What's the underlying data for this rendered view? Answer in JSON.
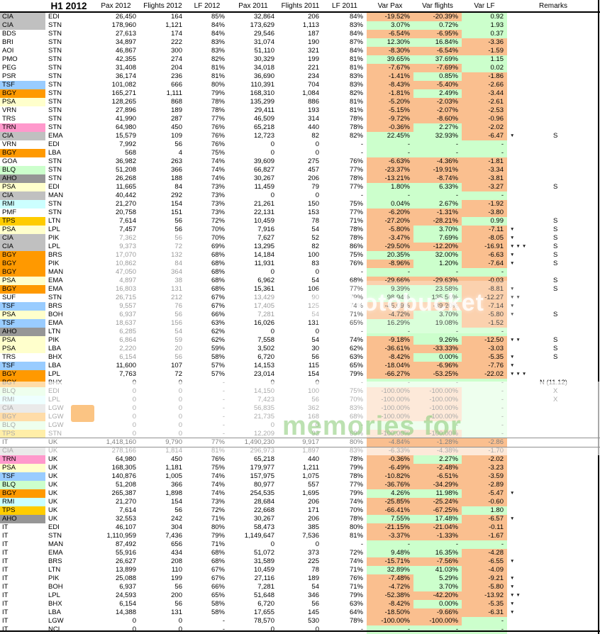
{
  "header": {
    "h1": "H1 2012",
    "pax12": "Pax 2012",
    "fl12": "Flights 2012",
    "lf12": "LF 2012",
    "pax11": "Pax 2011",
    "fl11": "Flights 2011",
    "lf11": "LF 2011",
    "vpax": "Var Pax",
    "vfl": "Var flights",
    "vlf": "Var LF",
    "rem": "Remarks"
  },
  "colors": {
    "positive_bg": "#ccffcc",
    "negative_bg": "#fabf8f",
    "total_text": "#808080",
    "dim_text": "#9a9a9a",
    "codes": {
      "CIA": "#c0c0c0",
      "AHO": "#969696",
      "TSF": "#99ccff",
      "BGY": "#ff9900",
      "PSA": "#ffffcc",
      "TRN": "#ff99cc",
      "BLQ": "#ccffcc",
      "RMI": "#ccffff",
      "TPS": "#ffcc00"
    }
  },
  "watermark": {
    "center_text": "photobucket",
    "band_text": "memories for"
  },
  "down_arrow_glyph": "▼",
  "table": {
    "rows": [
      [
        "CIA",
        "EDI",
        "26,450",
        "164",
        "85%",
        "32,864",
        "206",
        "84%",
        "-19.52%",
        "-20.39%",
        "0.92",
        0,
        "",
        ""
      ],
      [
        "CIA",
        "STN",
        "178,960",
        "1,121",
        "84%",
        "173,629",
        "1,113",
        "83%",
        "3.07%",
        "0.72%",
        "1.93",
        0,
        "",
        ""
      ],
      [
        "BDS",
        "STN",
        "27,613",
        "174",
        "84%",
        "29,546",
        "187",
        "84%",
        "-6.54%",
        "-6.95%",
        "0.37",
        0,
        "",
        ""
      ],
      [
        "BRI",
        "STN",
        "34,897",
        "222",
        "83%",
        "31,074",
        "190",
        "87%",
        "12.30%",
        "16.84%",
        "-3.36",
        0,
        "",
        ""
      ],
      [
        "AOI",
        "STN",
        "46,867",
        "300",
        "83%",
        "51,110",
        "321",
        "84%",
        "-8.30%",
        "-6.54%",
        "-1.59",
        0,
        "",
        ""
      ],
      [
        "PMO",
        "STN",
        "42,355",
        "274",
        "82%",
        "30,329",
        "199",
        "81%",
        "39.65%",
        "37.69%",
        "1.15",
        0,
        "",
        ""
      ],
      [
        "PEG",
        "STN",
        "31,408",
        "204",
        "81%",
        "34,018",
        "221",
        "81%",
        "-7.67%",
        "-7.69%",
        "0.02",
        0,
        "",
        ""
      ],
      [
        "PSR",
        "STN",
        "36,174",
        "236",
        "81%",
        "36,690",
        "234",
        "83%",
        "-1.41%",
        "0.85%",
        "-1.86",
        0,
        "",
        ""
      ],
      [
        "TSF",
        "STN",
        "101,082",
        "666",
        "80%",
        "110,391",
        "704",
        "83%",
        "-8.43%",
        "-5.40%",
        "-2.66",
        0,
        "",
        ""
      ],
      [
        "BGY",
        "STN",
        "165,271",
        "1,111",
        "79%",
        "168,310",
        "1,084",
        "82%",
        "-1.81%",
        "2.49%",
        "-3.44",
        0,
        "",
        ""
      ],
      [
        "PSA",
        "STN",
        "128,265",
        "868",
        "78%",
        "135,299",
        "886",
        "81%",
        "-5.20%",
        "-2.03%",
        "-2.61",
        0,
        "",
        ""
      ],
      [
        "VRN",
        "STN",
        "27,896",
        "189",
        "78%",
        "29,411",
        "193",
        "81%",
        "-5.15%",
        "-2.07%",
        "-2.53",
        0,
        "",
        ""
      ],
      [
        "TRS",
        "STN",
        "41,990",
        "287",
        "77%",
        "46,509",
        "314",
        "78%",
        "-9.72%",
        "-8.60%",
        "-0.96",
        0,
        "",
        ""
      ],
      [
        "TRN",
        "STN",
        "64,980",
        "450",
        "76%",
        "65,218",
        "440",
        "78%",
        "-0.36%",
        "2.27%",
        "-2.02",
        0,
        "",
        ""
      ],
      [
        "CIA",
        "EMA",
        "15,579",
        "109",
        "76%",
        "12,723",
        "82",
        "82%",
        "22.45%",
        "32.93%",
        "-6.47",
        1,
        "S",
        ""
      ],
      [
        "VRN",
        "EDI",
        "7,992",
        "56",
        "76%",
        "0",
        "0",
        "-",
        "-",
        "-",
        "-",
        0,
        "",
        ""
      ],
      [
        "BGY",
        "LBA",
        "568",
        "4",
        "75%",
        "0",
        "0",
        "-",
        "-",
        "-",
        "-",
        0,
        "",
        ""
      ],
      [
        "GOA",
        "STN",
        "36,982",
        "263",
        "74%",
        "39,609",
        "275",
        "76%",
        "-6.63%",
        "-4.36%",
        "-1.81",
        0,
        "",
        ""
      ],
      [
        "BLQ",
        "STN",
        "51,208",
        "366",
        "74%",
        "66,827",
        "457",
        "77%",
        "-23.37%",
        "-19.91%",
        "-3.34",
        0,
        "",
        ""
      ],
      [
        "AHO",
        "STN",
        "26,268",
        "188",
        "74%",
        "30,267",
        "206",
        "78%",
        "-13.21%",
        "-8.74%",
        "-3.81",
        0,
        "",
        ""
      ],
      [
        "PSA",
        "EDI",
        "11,665",
        "84",
        "73%",
        "11,459",
        "79",
        "77%",
        "1.80%",
        "6.33%",
        "-3.27",
        0,
        "S",
        ""
      ],
      [
        "CIA",
        "MAN",
        "40,442",
        "292",
        "73%",
        "0",
        "0",
        "-",
        "-",
        "-",
        "-",
        0,
        "",
        ""
      ],
      [
        "RMI",
        "STN",
        "21,270",
        "154",
        "73%",
        "21,261",
        "150",
        "75%",
        "0.04%",
        "2.67%",
        "-1.92",
        0,
        "",
        ""
      ],
      [
        "PMF",
        "STN",
        "20,758",
        "151",
        "73%",
        "22,131",
        "153",
        "77%",
        "-6.20%",
        "-1.31%",
        "-3.80",
        0,
        "",
        ""
      ],
      [
        "TPS",
        "LTN",
        "7,614",
        "56",
        "72%",
        "10,459",
        "78",
        "71%",
        "-27.20%",
        "-28.21%",
        "0.99",
        0,
        "S",
        ""
      ],
      [
        "PSA",
        "LPL",
        "7,457",
        "56",
        "70%",
        "7,916",
        "54",
        "78%",
        "-5.80%",
        "3.70%",
        "-7.11",
        1,
        "S",
        ""
      ],
      [
        "CIA",
        "PIK",
        "7,362",
        "56",
        "70%",
        "7,627",
        "52",
        "78%",
        "-3.47%",
        "7.69%",
        "-8.05",
        1,
        "S",
        "d1"
      ],
      [
        "CIA",
        "LPL",
        "9,373",
        "72",
        "69%",
        "13,295",
        "82",
        "86%",
        "-29.50%",
        "-12.20%",
        "-16.91",
        3,
        "S",
        "d1"
      ],
      [
        "BGY",
        "BRS",
        "17,070",
        "132",
        "68%",
        "14,184",
        "100",
        "75%",
        "20.35%",
        "32.00%",
        "-6.63",
        1,
        "S",
        "d1"
      ],
      [
        "BGY",
        "PIK",
        "10,862",
        "84",
        "68%",
        "11,931",
        "83",
        "76%",
        "-8.96%",
        "1.20%",
        "-7.64",
        1,
        "S",
        "d1"
      ],
      [
        "BGY",
        "MAN",
        "47,050",
        "364",
        "68%",
        "0",
        "0",
        "-",
        "-",
        "-",
        "-",
        0,
        "",
        "d1"
      ],
      [
        "PSA",
        "EMA",
        "4,897",
        "38",
        "68%",
        "6,962",
        "54",
        "68%",
        "-29.66%",
        "-29.63%",
        "-0.03",
        0,
        "S",
        "d1"
      ],
      [
        "BGY",
        "EMA",
        "16,803",
        "131",
        "68%",
        "15,361",
        "106",
        "77%",
        "9.39%",
        "23.58%",
        "-8.81",
        1,
        "S",
        "d1"
      ],
      [
        "SUF",
        "STN",
        "26,715",
        "212",
        "67%",
        "13,429",
        "90",
        "79%",
        "98.94%",
        "135.56%",
        "-12.27",
        2,
        "",
        "d2"
      ],
      [
        "TSF",
        "BRS",
        "9,557",
        "76",
        "67%",
        "17,405",
        "125",
        "74%",
        "-45.09%",
        "-39.20%",
        "-7.14",
        1,
        "",
        "d2"
      ],
      [
        "PSA",
        "BOH",
        "6,937",
        "56",
        "66%",
        "7,281",
        "54",
        "71%",
        "-4.72%",
        "3.70%",
        "-5.80",
        1,
        "S",
        "d2"
      ],
      [
        "TSF",
        "EMA",
        "18,637",
        "156",
        "63%",
        "16,026",
        "131",
        "65%",
        "16.29%",
        "19.08%",
        "-1.52",
        0,
        "",
        "d1"
      ],
      [
        "AHO",
        "LTN",
        "6,285",
        "54",
        "62%",
        "0",
        "0",
        "-",
        "-",
        "-",
        "-",
        0,
        "",
        "d1"
      ],
      [
        "PSA",
        "PIK",
        "6,864",
        "59",
        "62%",
        "7,558",
        "54",
        "74%",
        "-9.18%",
        "9.26%",
        "-12.50",
        2,
        "S",
        "d1"
      ],
      [
        "PSA",
        "LBA",
        "2,220",
        "20",
        "59%",
        "3,502",
        "30",
        "62%",
        "-36.61%",
        "-33.33%",
        "-3.03",
        0,
        "S",
        "d1"
      ],
      [
        "TRS",
        "BHX",
        "6,154",
        "56",
        "58%",
        "6,720",
        "56",
        "63%",
        "-8.42%",
        "0.00%",
        "-5.35",
        1,
        "S",
        "d1"
      ],
      [
        "TSF",
        "LBA",
        "11,600",
        "107",
        "57%",
        "14,153",
        "115",
        "65%",
        "-18.04%",
        "-6.96%",
        "-7.76",
        1,
        "",
        ""
      ],
      [
        "BGY",
        "LPL",
        "7,763",
        "72",
        "57%",
        "23,014",
        "154",
        "79%",
        "-66.27%",
        "-53.25%",
        "-22.02",
        3,
        "",
        ""
      ],
      [
        "BGY",
        "BHX",
        "0",
        "0",
        "-",
        "0",
        "0",
        "-",
        "-",
        "-",
        "-",
        0,
        "N (11.12)",
        ""
      ],
      [
        "BLQ",
        "EDI",
        "0",
        "0",
        "-",
        "14,150",
        "100",
        "75%",
        "-100.00%",
        "-100.00%",
        "-",
        0,
        "X",
        ""
      ],
      [
        "RMI",
        "LPL",
        "0",
        "0",
        "-",
        "7,423",
        "56",
        "70%",
        "-100.00%",
        "-100.00%",
        "-",
        0,
        "X",
        ""
      ],
      [
        "CIA",
        "LGW",
        "0",
        "0",
        "-",
        "56,835",
        "362",
        "83%",
        "-100.00%",
        "-100.00%",
        "-",
        0,
        "",
        ""
      ],
      [
        "BGY",
        "LGW",
        "0",
        "0",
        "-",
        "21,735",
        "168",
        "68%",
        "-100.00%",
        "-100.00%",
        "-",
        0,
        "",
        ""
      ],
      [
        "BLQ",
        "LGW",
        "0",
        "0",
        "-",
        "0",
        "0",
        "-",
        "-",
        "-",
        "-",
        0,
        "",
        ""
      ],
      [
        "TPS",
        "STN",
        "0",
        "0",
        "-",
        "12,209",
        "93",
        "69%",
        "-100.00%",
        "-100.00%",
        "-",
        0,
        "",
        ""
      ],
      [
        "IT",
        "UK",
        "1,418,160",
        "9,790",
        "77%",
        "1,490,230",
        "9,917",
        "80%",
        "-4.84%",
        "-1.28%",
        "-2.86",
        0,
        "",
        "tot"
      ],
      [
        "CIA",
        "UK",
        "278,166",
        "1,814",
        "81%",
        "296,973",
        "1,897",
        "83%",
        "-6.33%",
        "-4.38%",
        "-1.70",
        0,
        "",
        ""
      ],
      [
        "TRN",
        "UK",
        "64,980",
        "450",
        "76%",
        "65,218",
        "440",
        "78%",
        "-0.36%",
        "2.27%",
        "-2.02",
        0,
        "",
        ""
      ],
      [
        "PSA",
        "UK",
        "168,305",
        "1,181",
        "75%",
        "179,977",
        "1,211",
        "79%",
        "-6.49%",
        "-2.48%",
        "-3.23",
        0,
        "",
        ""
      ],
      [
        "TSF",
        "UK",
        "140,876",
        "1,005",
        "74%",
        "157,975",
        "1,075",
        "78%",
        "-10.82%",
        "-6.51%",
        "-3.59",
        0,
        "",
        ""
      ],
      [
        "BLQ",
        "UK",
        "51,208",
        "366",
        "74%",
        "80,977",
        "557",
        "77%",
        "-36.76%",
        "-34.29%",
        "-2.89",
        0,
        "",
        ""
      ],
      [
        "BGY",
        "UK",
        "265,387",
        "1,898",
        "74%",
        "254,535",
        "1,695",
        "79%",
        "4.26%",
        "11.98%",
        "-5.47",
        1,
        "",
        ""
      ],
      [
        "RMI",
        "UK",
        "21,270",
        "154",
        "73%",
        "28,684",
        "206",
        "74%",
        "-25.85%",
        "-25.24%",
        "-0.60",
        0,
        "",
        ""
      ],
      [
        "TPS",
        "UK",
        "7,614",
        "56",
        "72%",
        "22,668",
        "171",
        "70%",
        "-66.41%",
        "-67.25%",
        "1.80",
        0,
        "",
        ""
      ],
      [
        "AHO",
        "UK",
        "32,553",
        "242",
        "71%",
        "30,267",
        "206",
        "78%",
        "7.55%",
        "17.48%",
        "-6.57",
        1,
        "",
        ""
      ],
      [
        "IT",
        "EDI",
        "46,107",
        "304",
        "80%",
        "58,473",
        "385",
        "80%",
        "-21.15%",
        "-21.04%",
        "-0.11",
        0,
        "",
        ""
      ],
      [
        "IT",
        "STN",
        "1,110,959",
        "7,436",
        "79%",
        "1,149,647",
        "7,536",
        "81%",
        "-3.37%",
        "-1.33%",
        "-1.67",
        0,
        "",
        ""
      ],
      [
        "IT",
        "MAN",
        "87,492",
        "656",
        "71%",
        "0",
        "0",
        "-",
        "-",
        "-",
        "-",
        0,
        "",
        ""
      ],
      [
        "IT",
        "EMA",
        "55,916",
        "434",
        "68%",
        "51,072",
        "373",
        "72%",
        "9.48%",
        "16.35%",
        "-4.28",
        0,
        "",
        ""
      ],
      [
        "IT",
        "BRS",
        "26,627",
        "208",
        "68%",
        "31,589",
        "225",
        "74%",
        "-15.71%",
        "-7.56%",
        "-6.55",
        1,
        "",
        ""
      ],
      [
        "IT",
        "LTN",
        "13,899",
        "110",
        "67%",
        "10,459",
        "78",
        "71%",
        "32.89%",
        "41.03%",
        "-4.09",
        0,
        "",
        ""
      ],
      [
        "IT",
        "PIK",
        "25,088",
        "199",
        "67%",
        "27,116",
        "189",
        "76%",
        "-7.48%",
        "5.29%",
        "-9.21",
        1,
        "",
        ""
      ],
      [
        "IT",
        "BOH",
        "6,937",
        "56",
        "66%",
        "7,281",
        "54",
        "71%",
        "-4.72%",
        "3.70%",
        "-5.80",
        1,
        "",
        ""
      ],
      [
        "IT",
        "LPL",
        "24,593",
        "200",
        "65%",
        "51,648",
        "346",
        "79%",
        "-52.38%",
        "-42.20%",
        "-13.92",
        2,
        "",
        ""
      ],
      [
        "IT",
        "BHX",
        "6,154",
        "56",
        "58%",
        "6,720",
        "56",
        "63%",
        "-8.42%",
        "0.00%",
        "-5.35",
        1,
        "",
        ""
      ],
      [
        "IT",
        "LBA",
        "14,388",
        "131",
        "58%",
        "17,655",
        "145",
        "64%",
        "-18.50%",
        "-9.66%",
        "-6.31",
        1,
        "",
        ""
      ],
      [
        "IT",
        "LGW",
        "0",
        "0",
        "-",
        "78,570",
        "530",
        "78%",
        "-100.00%",
        "-100.00%",
        "-",
        0,
        "",
        ""
      ],
      [
        "IT",
        "NCL",
        "0",
        "0",
        "-",
        "0",
        "0",
        "-",
        "-",
        "-",
        "-",
        0,
        "",
        ""
      ]
    ]
  }
}
